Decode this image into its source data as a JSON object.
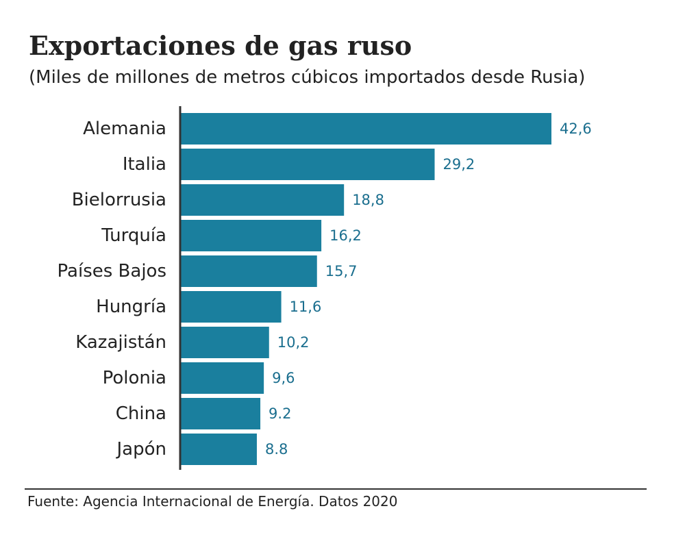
{
  "chart_data": {
    "type": "bar",
    "orientation": "horizontal",
    "title": "Exportaciones de gas ruso",
    "subtitle": "(Miles de millones de metros cúbicos importados desde Rusia)",
    "categories": [
      "Alemania",
      "Italia",
      "Bielorrusia",
      "Turquía",
      "Países Bajos",
      "Hungría",
      "Kazajistán",
      "Polonia",
      "China",
      "Japón"
    ],
    "values": [
      42.6,
      29.2,
      18.8,
      16.2,
      15.7,
      11.6,
      10.2,
      9.6,
      9.2,
      8.8
    ],
    "value_labels": [
      "42,6",
      "29,2",
      "18,8",
      "16,2",
      "15,7",
      "11,6",
      "10,2",
      "9,6",
      "9.2",
      "8.8"
    ],
    "xlim": [
      0,
      42.6
    ],
    "xlabel": "",
    "ylabel": "",
    "grid": false,
    "source": "Fuente: Agencia Internacional de Energía. Datos 2020",
    "colors": {
      "bar": "#1a7f9e",
      "value_label": "#1a6e8e",
      "axis": "#333333",
      "text": "#222222"
    }
  }
}
